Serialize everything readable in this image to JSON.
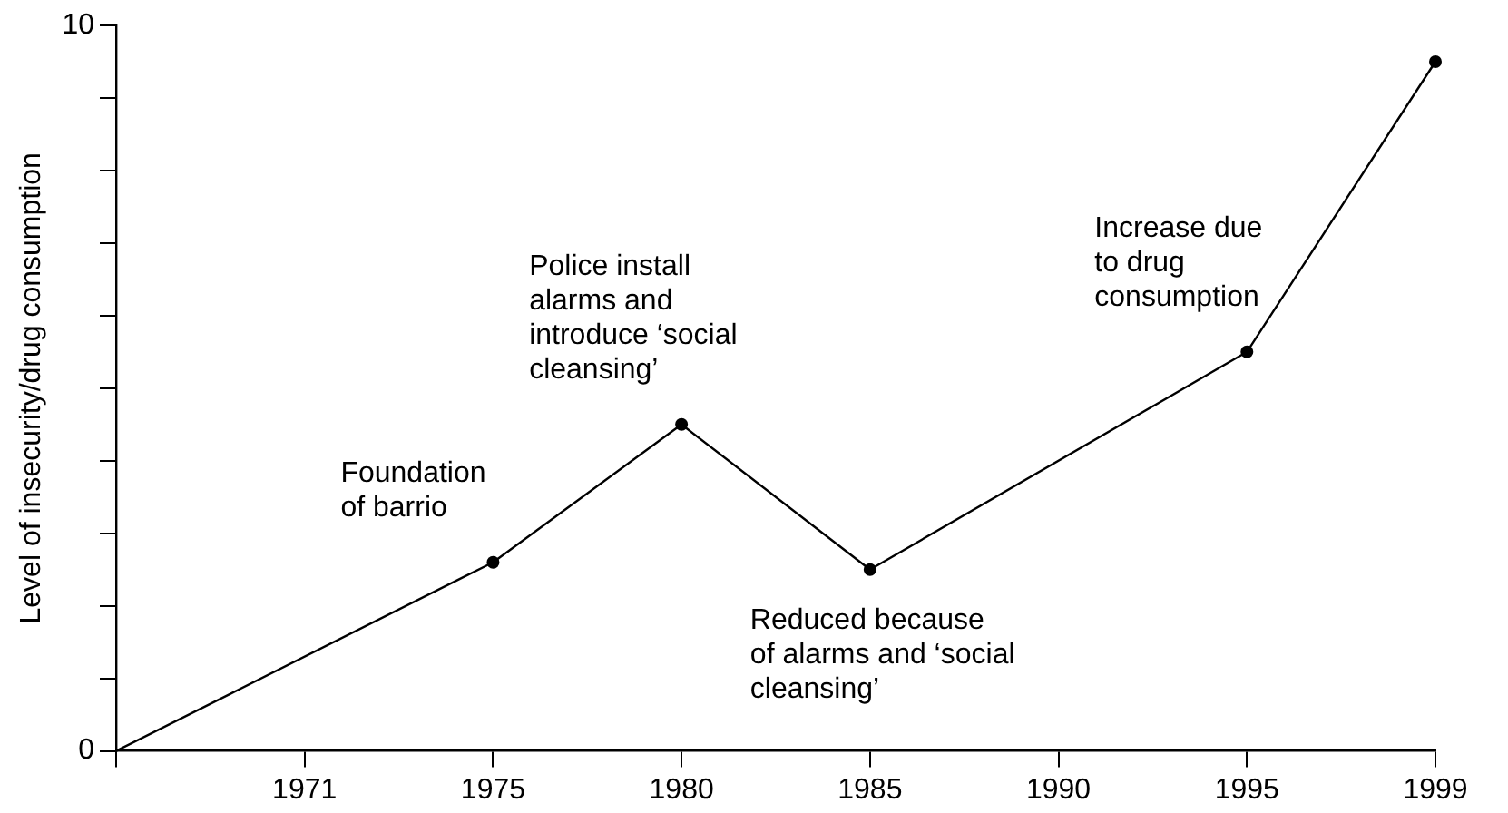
{
  "chart_data": {
    "type": "line",
    "ylabel": "Level of insecurity/drug consumption",
    "categories": [
      null,
      "1971",
      "1975",
      "1980",
      "1985",
      "1990",
      "1995",
      "1999"
    ],
    "series": [
      {
        "color": "#000000",
        "values": [
          0,
          null,
          2.6,
          4.5,
          2.5,
          null,
          5.5,
          9.5
        ]
      }
    ],
    "ylim": [
      0,
      10
    ],
    "yticks": [
      0,
      {
        "value": 1,
        "label": null
      },
      {
        "value": 2,
        "label": null
      },
      {
        "value": 3,
        "label": null
      },
      {
        "value": 4,
        "label": null
      },
      {
        "value": 5,
        "label": null
      },
      {
        "value": 6,
        "label": null
      },
      {
        "value": 7,
        "label": null
      },
      {
        "value": 8,
        "label": null
      },
      {
        "value": 9,
        "label": null
      },
      10
    ],
    "annotations": [
      {
        "text": "Foundation\nof barrio",
        "x": "1975",
        "y": 2.6
      },
      {
        "text": "Police install\nalarms and\nintroduce ‘social\ncleansing’",
        "x": "1980",
        "y": 4.5
      },
      {
        "text": "Reduced because\nof alarms and ‘social\ncleansing’",
        "x": "1985",
        "y": 2.5
      },
      {
        "text": "Increase due\nto drug\nconsumption",
        "x": "1995",
        "y": 5.5
      }
    ],
    "marker": "circle",
    "grid": false,
    "legend": false
  }
}
